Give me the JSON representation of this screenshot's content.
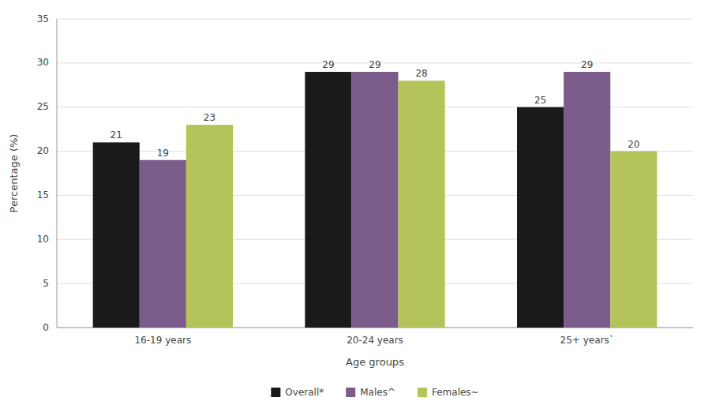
{
  "chart_data": {
    "type": "bar",
    "xlabel": "Age groups",
    "ylabel": "Percentage (%)",
    "categories": [
      "16-19 years",
      "20-24 years",
      "25+ years`"
    ],
    "series": [
      {
        "name": "Overall*",
        "color": "#1a1a1a",
        "values": [
          21,
          29,
          25
        ]
      },
      {
        "name": "Males^",
        "color": "#7b5c8a",
        "values": [
          19,
          29,
          29
        ]
      },
      {
        "name": "Females~",
        "color": "#b5c45a",
        "values": [
          23,
          28,
          20
        ]
      }
    ],
    "ylim": [
      0,
      35
    ],
    "yticks": [
      0,
      5,
      10,
      15,
      20,
      25,
      30,
      35
    ],
    "grid": true,
    "data_labels": true,
    "legend": "bottom"
  }
}
